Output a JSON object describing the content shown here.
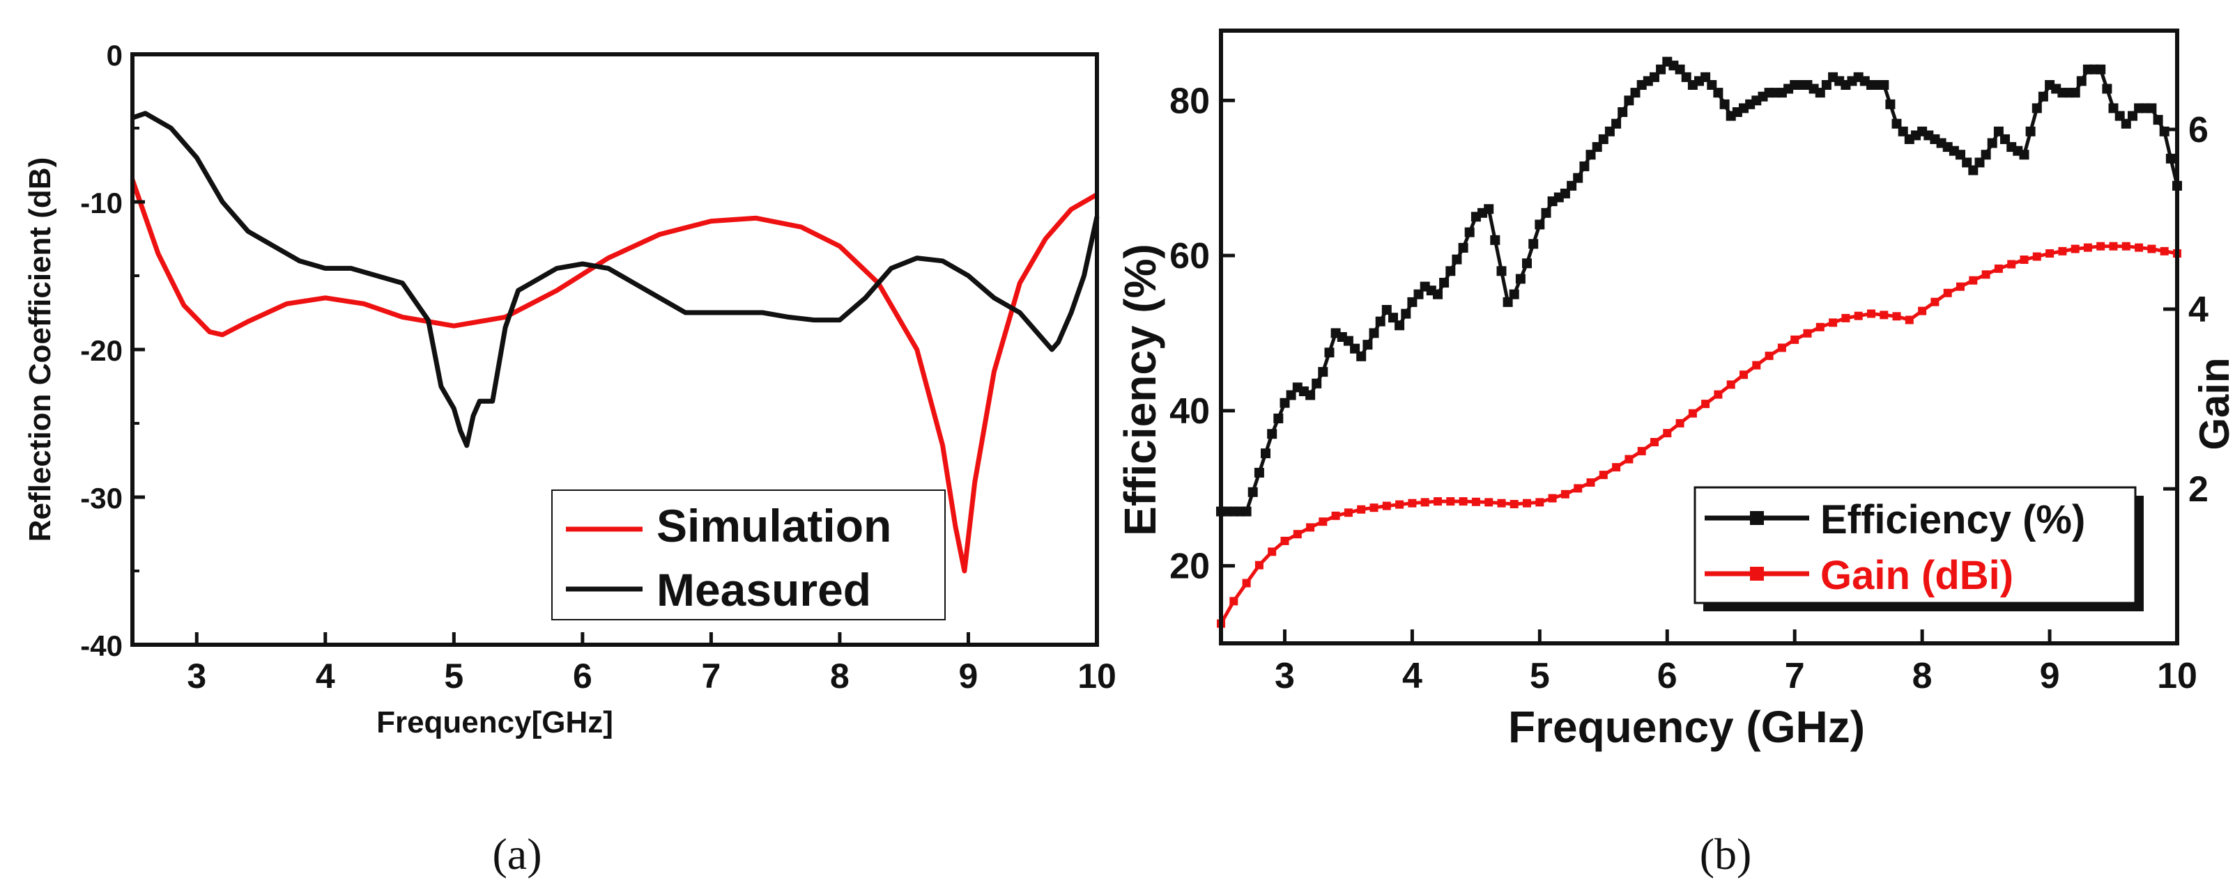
{
  "captions": [
    "(a)",
    "(b)"
  ],
  "chart_data": [
    {
      "type": "line",
      "xlabel": "Frequency[GHz]",
      "ylabel": "Reflection Coefficient (dB)",
      "xlim": [
        2.5,
        10
      ],
      "ylim": [
        -40,
        0
      ],
      "x_ticks": [
        "3",
        "4",
        "5",
        "6",
        "7",
        "8",
        "9",
        "10"
      ],
      "y_ticks": [
        "0",
        "-10",
        "-20",
        "-30",
        "-40"
      ],
      "grid": false,
      "legend_position": "lower-right",
      "series": [
        {
          "name": "Simulation",
          "color": "#ee1111",
          "x": [
            2.5,
            2.7,
            2.9,
            3.1,
            3.2,
            3.4,
            3.7,
            4.0,
            4.3,
            4.6,
            5.0,
            5.4,
            5.8,
            6.2,
            6.6,
            7.0,
            7.35,
            7.7,
            8.0,
            8.3,
            8.6,
            8.8,
            8.9,
            8.97,
            9.05,
            9.2,
            9.4,
            9.6,
            9.8,
            10.0
          ],
          "y": [
            -8.5,
            -13.5,
            -17.0,
            -18.8,
            -19.0,
            -18.1,
            -16.9,
            -16.5,
            -16.9,
            -17.8,
            -18.4,
            -17.8,
            -16.0,
            -13.8,
            -12.2,
            -11.3,
            -11.1,
            -11.7,
            -13.0,
            -15.5,
            -20.0,
            -26.5,
            -32.0,
            -35.0,
            -29.0,
            -21.5,
            -15.5,
            -12.5,
            -10.5,
            -9.5
          ]
        },
        {
          "name": "Measured",
          "color": "#111111",
          "x": [
            2.5,
            2.6,
            2.8,
            3.0,
            3.2,
            3.4,
            3.6,
            3.8,
            4.0,
            4.2,
            4.4,
            4.6,
            4.8,
            4.9,
            5.0,
            5.05,
            5.1,
            5.15,
            5.2,
            5.3,
            5.4,
            5.5,
            5.6,
            5.8,
            6.0,
            6.2,
            6.4,
            6.6,
            6.8,
            7.0,
            7.2,
            7.4,
            7.6,
            7.8,
            8.0,
            8.2,
            8.4,
            8.6,
            8.8,
            9.0,
            9.2,
            9.4,
            9.5,
            9.6,
            9.65,
            9.7,
            9.8,
            9.9,
            10.0
          ],
          "y": [
            -4.3,
            -4.0,
            -5.0,
            -7.0,
            -10.0,
            -12.0,
            -13.0,
            -14.0,
            -14.5,
            -14.5,
            -15.0,
            -15.5,
            -18.0,
            -22.5,
            -24.0,
            -25.5,
            -26.5,
            -24.5,
            -23.5,
            -23.5,
            -18.5,
            -16.0,
            -15.5,
            -14.5,
            -14.2,
            -14.5,
            -15.5,
            -16.5,
            -17.5,
            -17.5,
            -17.5,
            -17.5,
            -17.8,
            -18.0,
            -18.0,
            -16.5,
            -14.5,
            -13.8,
            -14.0,
            -15.0,
            -16.5,
            -17.5,
            -18.5,
            -19.5,
            -20.0,
            -19.5,
            -17.5,
            -15.0,
            -11.0
          ]
        }
      ]
    },
    {
      "type": "line",
      "xlabel": "Frequency (GHz)",
      "ylabel": "Efficiency (%)",
      "y2label": "Gain",
      "xlim": [
        2.5,
        10
      ],
      "ylim": [
        10,
        89
      ],
      "y2lim": [
        0.28,
        7.1
      ],
      "x_ticks": [
        "3",
        "4",
        "5",
        "6",
        "7",
        "8",
        "9",
        "10"
      ],
      "y_ticks": [
        "20",
        "40",
        "60",
        "80"
      ],
      "y2_ticks": [
        "2",
        "4",
        "6"
      ],
      "grid": false,
      "legend_position": "lower-right",
      "series": [
        {
          "name": "Efficiency (%)",
          "axis": "left",
          "color": "#111111",
          "marker": "square",
          "x": [
            2.5,
            2.6,
            2.7,
            2.8,
            2.9,
            3.0,
            3.1,
            3.2,
            3.3,
            3.4,
            3.5,
            3.6,
            3.7,
            3.8,
            3.9,
            4.0,
            4.1,
            4.2,
            4.3,
            4.4,
            4.5,
            4.6,
            4.7,
            4.75,
            4.8,
            4.9,
            5.0,
            5.1,
            5.2,
            5.3,
            5.4,
            5.5,
            5.6,
            5.7,
            5.8,
            5.9,
            6.0,
            6.1,
            6.2,
            6.3,
            6.4,
            6.5,
            6.6,
            6.7,
            6.8,
            6.9,
            7.0,
            7.1,
            7.2,
            7.3,
            7.4,
            7.5,
            7.6,
            7.7,
            7.8,
            7.9,
            8.0,
            8.1,
            8.2,
            8.3,
            8.4,
            8.5,
            8.6,
            8.7,
            8.8,
            8.9,
            9.0,
            9.1,
            9.2,
            9.3,
            9.4,
            9.5,
            9.6,
            9.7,
            9.8,
            9.9,
            10.0
          ],
          "y": [
            27,
            27,
            27,
            32,
            37,
            41,
            43,
            42,
            45,
            50,
            49,
            47,
            50,
            53,
            51,
            54,
            56,
            55,
            58,
            61,
            65,
            66,
            58,
            54,
            55,
            59,
            64,
            67,
            68,
            70,
            73,
            75,
            77,
            80,
            82,
            83,
            85,
            84,
            82,
            83,
            81,
            78,
            79,
            80,
            81,
            81,
            82,
            82,
            81,
            83,
            82,
            83,
            82,
            82,
            77,
            75,
            76,
            75,
            74,
            73,
            71,
            73,
            76,
            74,
            73,
            79,
            82,
            81,
            81,
            84,
            84,
            79,
            77,
            79,
            79,
            76,
            69
          ]
        },
        {
          "name": "Gain (dBi)",
          "axis": "right",
          "color": "#ee1111",
          "marker": "square",
          "x": [
            2.5,
            2.6,
            2.7,
            2.8,
            2.9,
            3.0,
            3.2,
            3.4,
            3.6,
            3.8,
            4.0,
            4.2,
            4.4,
            4.6,
            4.8,
            5.0,
            5.2,
            5.4,
            5.6,
            5.8,
            6.0,
            6.2,
            6.4,
            6.6,
            6.8,
            7.0,
            7.2,
            7.4,
            7.6,
            7.8,
            7.9,
            8.0,
            8.2,
            8.4,
            8.6,
            8.8,
            9.0,
            9.2,
            9.4,
            9.6,
            9.8,
            10.0
          ],
          "y": [
            0.5,
            0.75,
            0.95,
            1.15,
            1.3,
            1.42,
            1.57,
            1.7,
            1.77,
            1.81,
            1.84,
            1.86,
            1.86,
            1.85,
            1.83,
            1.85,
            1.94,
            2.07,
            2.24,
            2.42,
            2.62,
            2.84,
            3.05,
            3.27,
            3.48,
            3.66,
            3.8,
            3.9,
            3.95,
            3.92,
            3.88,
            3.98,
            4.18,
            4.32,
            4.45,
            4.55,
            4.62,
            4.67,
            4.7,
            4.7,
            4.67,
            4.62
          ]
        }
      ]
    }
  ]
}
